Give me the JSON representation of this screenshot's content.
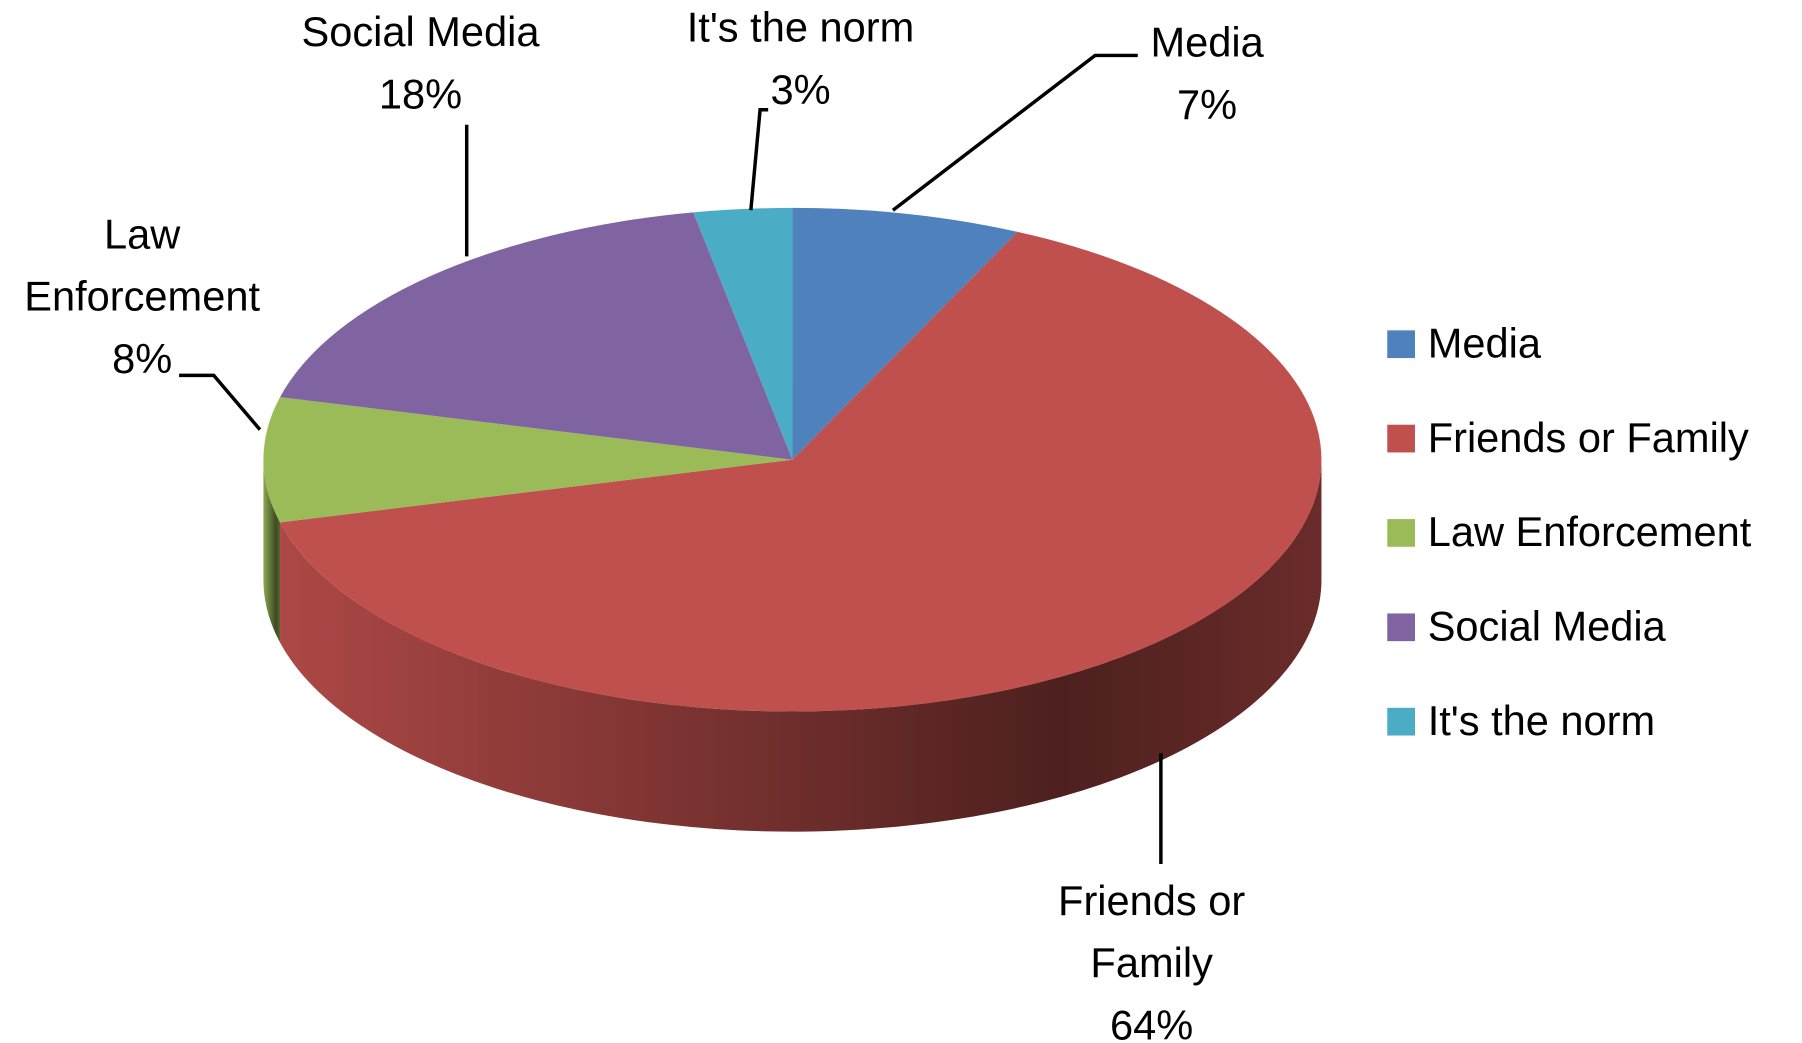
{
  "chart_data": {
    "type": "pie",
    "categories": [
      "Media",
      "Friends or Family",
      "Law Enforcement",
      "Social Media",
      "It's the norm"
    ],
    "values": [
      7,
      64,
      8,
      18,
      3
    ],
    "value_labels": [
      "7%",
      "64%",
      "8%",
      "18%",
      "3%"
    ],
    "colors": [
      "#4f81bd",
      "#c0504d",
      "#9bbb59",
      "#8064a2",
      "#4bacc6"
    ],
    "legend": "right"
  }
}
